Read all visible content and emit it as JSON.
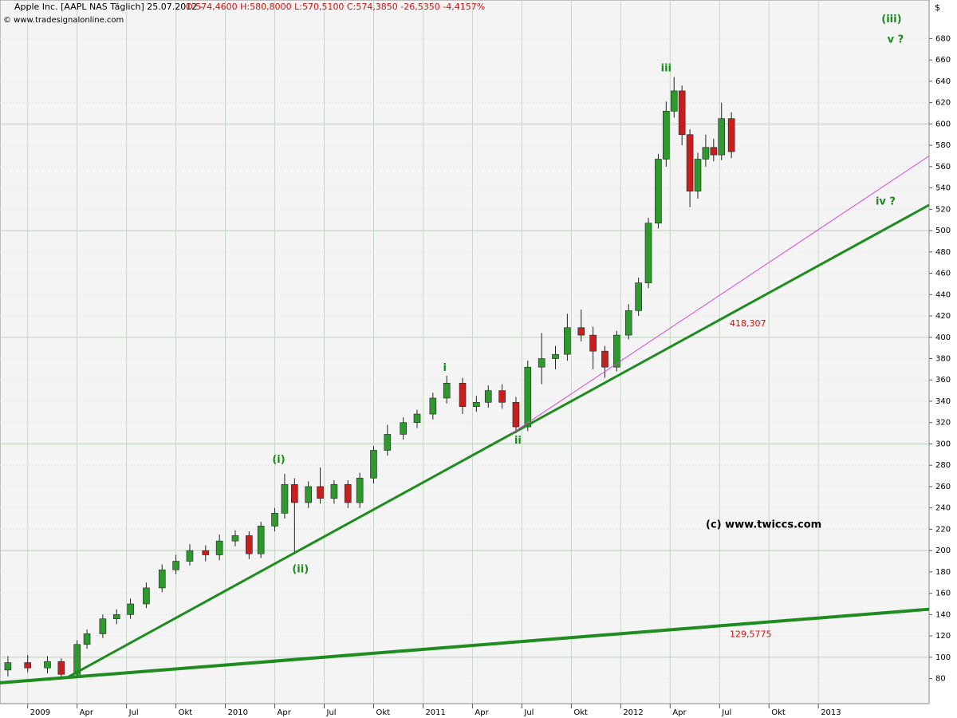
{
  "header": {
    "title": "Apple Inc. [AAPL NAS  Täglich] 25.07.2012 -",
    "quote": "O:574,4600 H:580,8000 L:570,5100 C:574,3850 -26,5350 -4,4157%",
    "source": "© www.tradesignalonline.com",
    "currency": "$",
    "watermark": "(c) www.twiccs.com"
  },
  "chart_data": {
    "type": "candlestick",
    "x": [
      2008.9,
      2009.0,
      2009.1,
      2009.17,
      2009.25,
      2009.3,
      2009.38,
      2009.45,
      2009.52,
      2009.6,
      2009.68,
      2009.75,
      2009.82,
      2009.9,
      2009.97,
      2010.05,
      2010.12,
      2010.18,
      2010.25,
      2010.3,
      2010.35,
      2010.42,
      2010.48,
      2010.55,
      2010.62,
      2010.68,
      2010.75,
      2010.82,
      2010.9,
      2010.97,
      2011.05,
      2011.12,
      2011.2,
      2011.27,
      2011.33,
      2011.4,
      2011.47,
      2011.53,
      2011.6,
      2011.67,
      2011.73,
      2011.8,
      2011.86,
      2011.92,
      2011.98,
      2012.04,
      2012.09,
      2012.14,
      2012.19,
      2012.23,
      2012.27,
      2012.31,
      2012.35,
      2012.39,
      2012.43,
      2012.47,
      2012.51,
      2012.56
    ],
    "open": [
      88,
      95,
      90,
      96,
      84,
      112,
      122,
      136,
      140,
      150,
      165,
      182,
      190,
      200,
      196,
      209,
      214,
      197,
      223,
      235,
      262,
      245,
      260,
      249,
      262,
      245,
      268,
      294,
      309,
      320,
      328,
      343,
      357,
      335,
      339,
      350,
      339,
      316,
      372,
      380,
      384,
      409,
      402,
      387,
      372,
      402,
      425,
      451,
      507,
      567,
      612,
      631,
      590,
      537,
      567,
      578,
      571,
      605
    ],
    "high": [
      101,
      102,
      101,
      99,
      116,
      126,
      140,
      145,
      155,
      170,
      187,
      196,
      206,
      205,
      215,
      219,
      218,
      227,
      240,
      272,
      268,
      265,
      278,
      266,
      266,
      273,
      298,
      318,
      325,
      332,
      348,
      364,
      362,
      345,
      355,
      356,
      344,
      378,
      404,
      392,
      422,
      426,
      410,
      392,
      406,
      431,
      456,
      512,
      572,
      621,
      644,
      636,
      595,
      573,
      590,
      586,
      620,
      611
    ],
    "low": [
      82,
      86,
      85,
      79,
      82,
      108,
      118,
      131,
      136,
      146,
      161,
      178,
      186,
      190,
      191,
      204,
      192,
      193,
      218,
      230,
      199,
      240,
      244,
      244,
      240,
      240,
      263,
      289,
      304,
      315,
      323,
      338,
      328,
      330,
      334,
      333,
      310,
      312,
      356,
      370,
      378,
      396,
      370,
      362,
      368,
      398,
      420,
      446,
      502,
      560,
      606,
      580,
      522,
      530,
      560,
      565,
      566,
      568
    ],
    "close": [
      95,
      90,
      96,
      84,
      112,
      122,
      136,
      140,
      150,
      165,
      182,
      190,
      200,
      196,
      209,
      214,
      197,
      223,
      235,
      262,
      245,
      260,
      249,
      262,
      245,
      268,
      294,
      309,
      320,
      328,
      343,
      357,
      335,
      339,
      350,
      339,
      316,
      372,
      380,
      384,
      409,
      402,
      387,
      372,
      402,
      425,
      451,
      507,
      567,
      612,
      631,
      590,
      537,
      567,
      578,
      571,
      605,
      574
    ],
    "up_color": "#2e9a2e",
    "down_color": "#c81e1e",
    "xlim": [
      2008.86,
      2013.56
    ],
    "ylim": [
      58,
      705
    ],
    "xticks": [
      2009,
      {
        "value": 2009.25,
        "label": "Apr"
      },
      {
        "value": 2009.5,
        "label": "Jul"
      },
      {
        "value": 2009.75,
        "label": "Okt"
      },
      2010,
      {
        "value": 2010.25,
        "label": "Apr"
      },
      {
        "value": 2010.5,
        "label": "Jul"
      },
      {
        "value": 2010.75,
        "label": "Okt"
      },
      2011,
      {
        "value": 2011.25,
        "label": "Apr"
      },
      {
        "value": 2011.5,
        "label": "Jul"
      },
      {
        "value": 2011.75,
        "label": "Okt"
      },
      2012,
      {
        "value": 2012.25,
        "label": "Apr"
      },
      {
        "value": 2012.5,
        "label": "Jul"
      },
      {
        "value": 2012.75,
        "label": "Okt"
      },
      2013
    ],
    "yticks": [
      80,
      100,
      120,
      140,
      160,
      180,
      200,
      220,
      240,
      260,
      280,
      300,
      320,
      340,
      360,
      380,
      400,
      420,
      440,
      460,
      480,
      500,
      520,
      540,
      560,
      580,
      600,
      620,
      640,
      660,
      680
    ],
    "grid": true,
    "trendlines": [
      {
        "x": [
          2009.2,
          2013.56
        ],
        "y": [
          81,
          524
        ],
        "color": "#1e8c1e",
        "label": "418,307"
      },
      {
        "x": [
          2008.86,
          2013.56
        ],
        "y": [
          76,
          145
        ],
        "color": "#1e8c1e",
        "label": "129,5775"
      },
      {
        "x": [
          2011.45,
          2013.56
        ],
        "y": [
          310,
          570
        ],
        "color": "#e040e0"
      }
    ],
    "annotations": [
      {
        "text": "(i)",
        "x": 2010.27,
        "y": 285
      },
      {
        "text": "(ii)",
        "x": 2010.38,
        "y": 182
      },
      {
        "text": "i",
        "x": 2011.11,
        "y": 371
      },
      {
        "text": "ii",
        "x": 2011.48,
        "y": 303
      },
      {
        "text": "iii",
        "x": 2012.23,
        "y": 652
      },
      {
        "text": "(iii)",
        "x": 2013.37,
        "y": 698
      },
      {
        "text": "v ?",
        "x": 2013.39,
        "y": 679
      },
      {
        "text": "iv ?",
        "x": 2013.34,
        "y": 527
      }
    ]
  }
}
